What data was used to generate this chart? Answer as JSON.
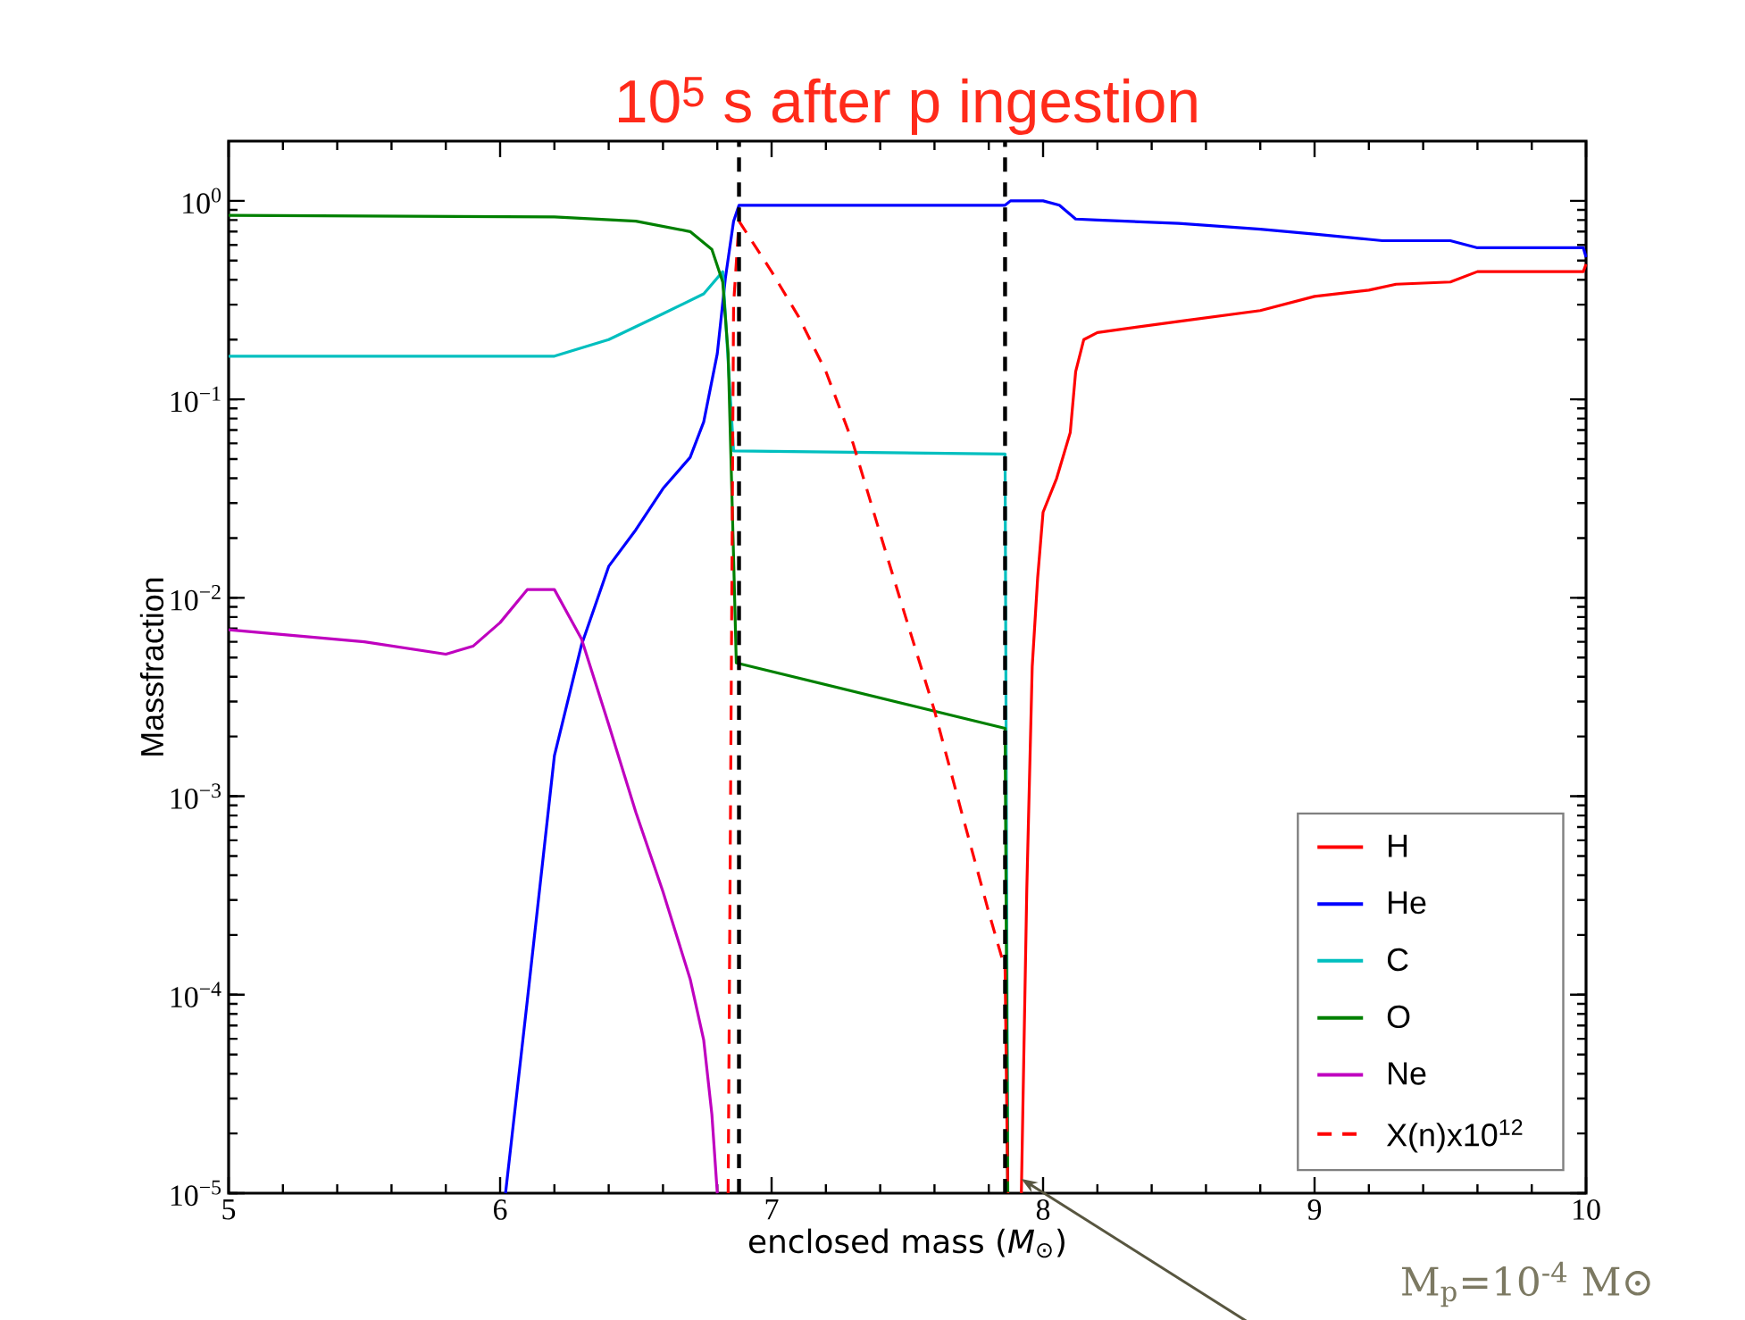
{
  "chart_data": {
    "type": "line",
    "title": "10$^{5}$ s after p ingestion",
    "xlabel": "enclosed mass (*M*$_{⊙}$)",
    "ylabel": "Massfraction",
    "log": "y",
    "xlim": [
      5,
      10
    ],
    "ylim": [
      1e-05,
      2
    ],
    "xticks": [
      5,
      6,
      7,
      8,
      9,
      10
    ],
    "yticks": [
      {
        "value": 1e-05,
        "label": "10$^{−5}$"
      },
      {
        "value": 0.0001,
        "label": "10$^{−4}$"
      },
      {
        "value": 0.001,
        "label": "10$^{−3}$"
      },
      {
        "value": 0.01,
        "label": "10$^{−2}$"
      },
      {
        "value": 0.1,
        "label": "10$^{−1}$"
      },
      {
        "value": 1,
        "label": "10$^{0}$"
      }
    ],
    "legend": "bottom right",
    "series": [
      {
        "name": "H",
        "color": "#ff0000",
        "line_style": "solid",
        "x": [
          7.92,
          7.94,
          7.96,
          7.98,
          8.0,
          8.05,
          8.1,
          8.12,
          8.15,
          8.2,
          8.5,
          8.8,
          9.0,
          9.2,
          9.3,
          9.5,
          9.6,
          9.99,
          10.0
        ],
        "values": [
          1e-05,
          0.00034,
          0.0045,
          0.0126,
          0.027,
          0.04,
          0.068,
          0.138,
          0.2,
          0.217,
          0.247,
          0.28,
          0.33,
          0.355,
          0.38,
          0.39,
          0.44,
          0.44,
          0.48
        ]
      },
      {
        "name": "He",
        "color": "#0000ff",
        "line_style": "solid",
        "x": [
          6.02,
          6.1,
          6.2,
          6.3,
          6.4,
          6.5,
          6.6,
          6.7,
          6.75,
          6.8,
          6.83,
          6.86,
          6.88,
          7.86,
          7.88,
          8.0,
          8.06,
          8.12,
          8.2,
          8.5,
          8.8,
          9.0,
          9.2,
          9.25,
          9.5,
          9.6,
          9.99,
          10.0
        ],
        "values": [
          1e-05,
          9.3e-05,
          0.0016,
          0.0058,
          0.0144,
          0.022,
          0.0355,
          0.051,
          0.077,
          0.17,
          0.41,
          0.79,
          0.95,
          0.95,
          1.0,
          1.0,
          0.95,
          0.81,
          0.8,
          0.77,
          0.72,
          0.68,
          0.64,
          0.63,
          0.63,
          0.58,
          0.58,
          0.52
        ]
      },
      {
        "name": "C",
        "color": "#00bfbf",
        "line_style": "solid",
        "x": [
          5,
          6.2,
          6.4,
          6.6,
          6.75,
          6.82,
          6.86,
          7.86,
          7.87
        ],
        "values": [
          0.165,
          0.165,
          0.2,
          0.27,
          0.34,
          0.44,
          0.055,
          0.053,
          1e-05
        ]
      },
      {
        "name": "O",
        "color": "#008000",
        "line_style": "solid",
        "x": [
          5,
          6.2,
          6.5,
          6.7,
          6.78,
          6.82,
          6.84,
          6.86,
          6.87,
          7.86,
          7.87
        ],
        "values": [
          0.845,
          0.83,
          0.79,
          0.7,
          0.57,
          0.39,
          0.17,
          0.016,
          0.0047,
          0.0022,
          1e-05
        ]
      },
      {
        "name": "Ne",
        "color": "#bf00bf",
        "line_style": "solid",
        "x": [
          5,
          5.5,
          5.8,
          5.9,
          6.0,
          6.1,
          6.2,
          6.3,
          6.4,
          6.5,
          6.6,
          6.7,
          6.75,
          6.78,
          6.8
        ],
        "values": [
          0.0069,
          0.006,
          0.0052,
          0.0057,
          0.0075,
          0.011,
          0.011,
          0.0062,
          0.0023,
          0.00083,
          0.00033,
          0.00012,
          5.9e-05,
          2.5e-05,
          1e-05
        ]
      },
      {
        "name": "X(n)x10$^{12}$",
        "color": "#ff0000",
        "line_style": "dashed",
        "x": [
          6.84,
          6.86,
          6.88,
          7.0,
          7.1,
          7.2,
          7.3,
          7.4,
          7.5,
          7.6,
          7.7,
          7.8,
          7.86,
          7.87
        ],
        "values": [
          1e-05,
          0.3,
          0.79,
          0.44,
          0.26,
          0.138,
          0.06,
          0.021,
          0.0075,
          0.0027,
          0.00083,
          0.00026,
          0.000135,
          1e-05
        ]
      }
    ],
    "ref_lines": [
      {
        "axis": "x",
        "value": 6.88,
        "color": "#000000",
        "line_style": "dashed"
      },
      {
        "axis": "x",
        "value": 7.86,
        "color": "#000000",
        "line_style": "dashed"
      }
    ],
    "annotations": [
      "M$_{p}$=10$^{-4}$ M⊙"
    ]
  }
}
